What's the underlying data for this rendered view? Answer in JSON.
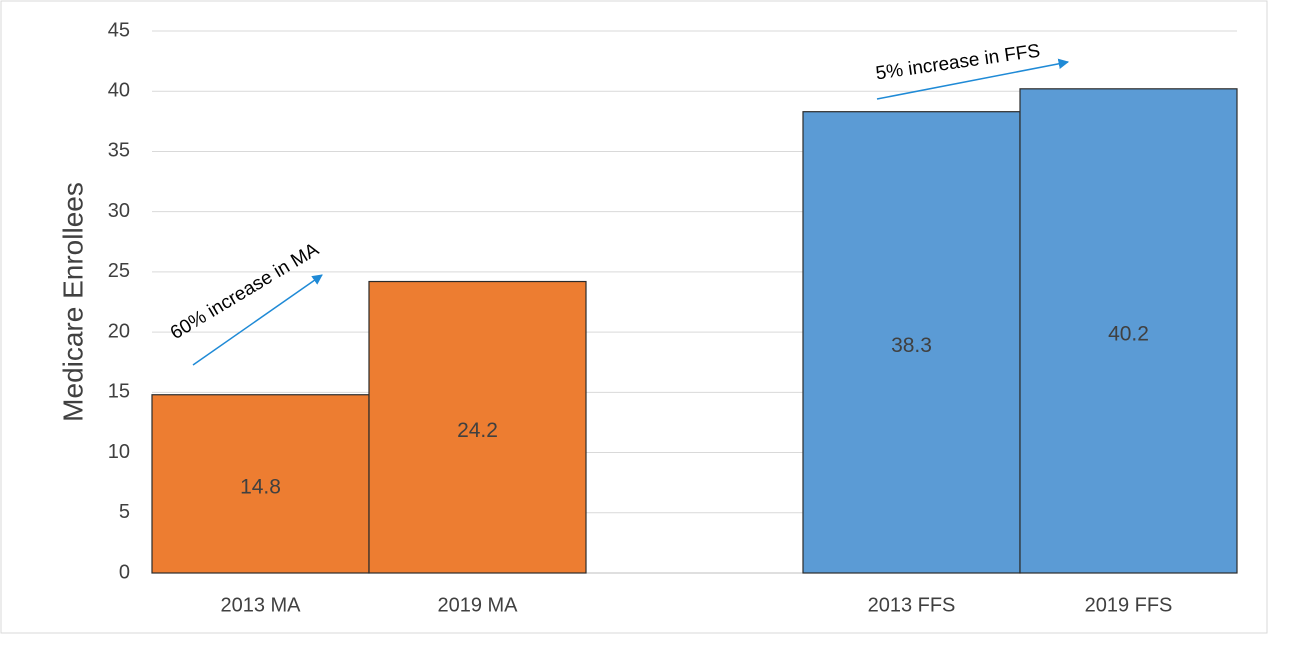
{
  "chart_data": {
    "type": "bar",
    "y_label": "Medicare Enrollees",
    "categories": [
      "2013 MA",
      "2019 MA",
      null,
      "2013 FFS",
      "2019 FFS"
    ],
    "values": [
      14.8,
      24.2,
      null,
      38.3,
      40.2
    ],
    "colors": [
      "#ed7d31",
      "#ed7d31",
      null,
      "#5b9bd5",
      "#5b9bd5"
    ],
    "ylim": [
      0,
      45
    ],
    "yticks": [
      0,
      5,
      10,
      15,
      20,
      25,
      30,
      35,
      40,
      45
    ],
    "grid": true,
    "annotations": [
      "60% increase in MA",
      "5% increase in FFS"
    ]
  }
}
